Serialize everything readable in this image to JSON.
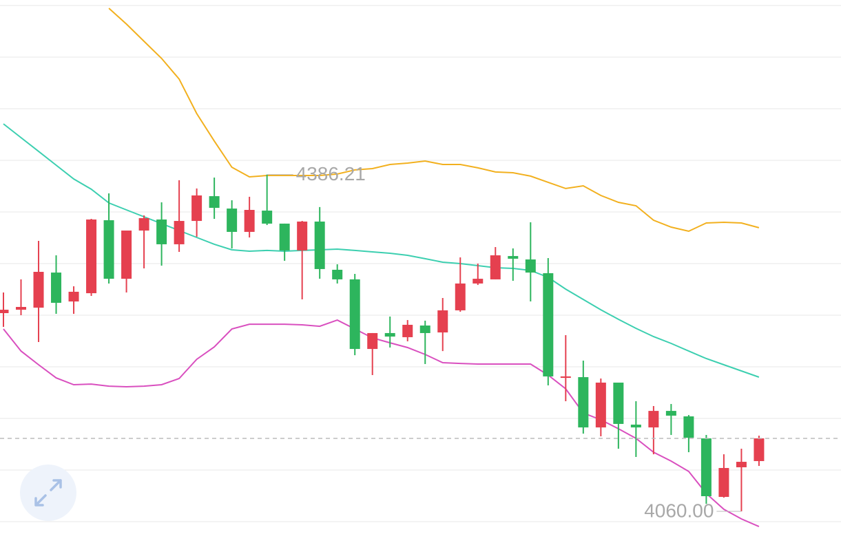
{
  "chart_data": {
    "type": "candlestick",
    "up_color": "#e5404f",
    "down_color": "#2db55d",
    "open": [
      4252.0,
      4255.3,
      4257.3,
      4291.3,
      4263.3,
      4271.3,
      4342.0,
      4285.3,
      4332.0,
      4342.7,
      4318.7,
      4341.3,
      4365.3,
      4353.3,
      4330.7,
      4351.3,
      4338.7,
      4312.7,
      4340.7,
      4294.0,
      4284.7,
      4217.3,
      4232.7,
      4228.7,
      4240.0,
      4233.3,
      4254.7,
      4280.7,
      4284.7,
      4307.3,
      4304.0,
      4290.7,
      4189.3,
      4190.0,
      4141.3,
      4184.7,
      4144.0,
      4141.3,
      4157.3,
      4152.0,
      4130.7,
      4074.0,
      4102.7,
      4108.7
    ],
    "high": [
      4272.0,
      4284.7,
      4322.0,
      4308.0,
      4278.0,
      4343.3,
      4368.0,
      4332.0,
      4346.7,
      4359.3,
      4380.7,
      4372.7,
      4383.3,
      4361.3,
      4364.7,
      4386.21,
      4338.7,
      4341.3,
      4354.7,
      4299.3,
      4290.0,
      4232.7,
      4248.7,
      4245.3,
      4244.7,
      4266.7,
      4306.0,
      4300.0,
      4316.0,
      4314.7,
      4340.0,
      4305.3,
      4230.7,
      4206.0,
      4188.7,
      4184.7,
      4166.7,
      4162.0,
      4164.0,
      4153.3,
      4134.0,
      4115.3,
      4120.7,
      4133.3
    ],
    "low": [
      4238.7,
      4250.0,
      4224.0,
      4251.3,
      4251.3,
      4268.7,
      4280.7,
      4272.0,
      4295.3,
      4298.0,
      4311.3,
      4326.0,
      4343.3,
      4314.7,
      4325.3,
      4337.3,
      4302.7,
      4265.3,
      4285.3,
      4280.7,
      4211.3,
      4192.0,
      4218.7,
      4224.7,
      4202.7,
      4215.3,
      4253.3,
      4279.3,
      4284.7,
      4283.3,
      4263.3,
      4182.0,
      4166.7,
      4135.3,
      4132.7,
      4120.7,
      4112.7,
      4115.3,
      4134.0,
      4117.3,
      4067.3,
      4073.3,
      4060.0,
      4104.0
    ],
    "close": [
      4255.3,
      4258.0,
      4292.0,
      4262.0,
      4272.7,
      4342.7,
      4285.3,
      4332.0,
      4344.0,
      4318.7,
      4341.3,
      4366.0,
      4354.0,
      4330.7,
      4352.0,
      4338.7,
      4312.7,
      4340.7,
      4294.7,
      4284.7,
      4217.3,
      4232.7,
      4229.3,
      4240.7,
      4232.7,
      4254.7,
      4280.7,
      4285.3,
      4308.0,
      4304.7,
      4291.3,
      4190.7,
      4190.7,
      4141.3,
      4184.7,
      4144.7,
      4141.3,
      4157.3,
      4152.7,
      4131.3,
      4074.7,
      4102.0,
      4108.0,
      4130.7
    ],
    "lines": [
      {
        "color": "#f2b01e",
        "values": [
          null,
          null,
          null,
          null,
          null,
          null,
          4547.3,
          4532.0,
          4515.3,
          4498.7,
          4478.7,
          4445.3,
          4418.7,
          4393.3,
          4384.0,
          4385.3,
          4385.3,
          4385.3,
          4385.3,
          4386.7,
          4390.7,
          4392.0,
          4396.0,
          4397.3,
          4399.3,
          4396.0,
          4396.0,
          4392.7,
          4388.7,
          4388.0,
          4384.7,
          4378.7,
          4372.7,
          4375.3,
          4366.0,
          4359.3,
          4356.0,
          4342.0,
          4335.3,
          4331.3,
          4339.3,
          4340.0,
          4339.3,
          4334.7
        ]
      },
      {
        "color": "#3ccfb0",
        "values": [
          4435.3,
          4422.0,
          4408.7,
          4395.3,
          4382.0,
          4372.0,
          4358.7,
          4352.0,
          4345.3,
          4338.7,
          4332.0,
          4325.3,
          4318.7,
          4313.3,
          4312.0,
          4312.7,
          4312.0,
          4312.7,
          4313.3,
          4314.0,
          4312.7,
          4311.3,
          4310.0,
          4308.0,
          4304.7,
          4301.3,
          4300.0,
          4298.0,
          4296.0,
          4295.3,
          4293.3,
          4286.7,
          4275.3,
          4265.3,
          4255.3,
          4246.0,
          4237.3,
          4229.3,
          4222.7,
          4215.3,
          4208.0,
          4202.0,
          4196.0,
          4190.0
        ]
      },
      {
        "color": "#d94fbf",
        "values": [
          4236.7,
          4215.3,
          4202.0,
          4189.3,
          4182.7,
          4183.3,
          4181.3,
          4180.7,
          4181.3,
          4182.7,
          4188.7,
          4207.3,
          4219.3,
          4236.7,
          4241.3,
          4241.3,
          4241.3,
          4240.7,
          4239.3,
          4245.3,
          4236.7,
          4228.0,
          4223.3,
          4218.7,
          4212.0,
          4204.0,
          4203.3,
          4202.7,
          4202.7,
          4202.7,
          4202.7,
          4192.0,
          4178.7,
          4155.3,
          4148.7,
          4140.0,
          4130.7,
          4117.3,
          4108.7,
          4098.7,
          4077.3,
          4062.0,
          4052.7,
          4045.3
        ]
      }
    ],
    "max_label": "4386.21",
    "min_label": "4060.00",
    "ylim": [
      4018.7,
      4555.3
    ],
    "yticks": [
      4050,
      4100,
      4150,
      4200,
      4250,
      4300,
      4350,
      4400,
      4450,
      4500,
      4550
    ],
    "grid": true
  }
}
